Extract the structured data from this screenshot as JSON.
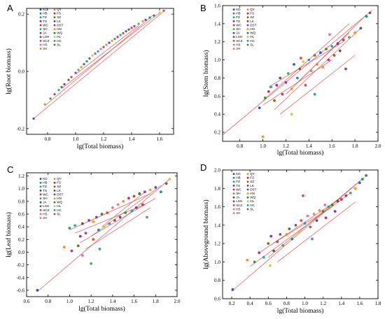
{
  "figure": {
    "legend_entries": [
      "KD",
      "QY",
      "HB",
      "FS",
      "FZ",
      "SZ",
      "TS",
      "LK",
      "WC",
      "DST",
      "SH",
      "HN",
      "JA",
      "WQ",
      "LSH",
      "HL",
      "SCZ",
      "HC",
      "HS",
      "SL",
      "JH"
    ],
    "legend_colors": [
      "#1f3fbf",
      "#e8871e",
      "#2b8a3e",
      "#c2185b",
      "#00a6a6",
      "#7a5c00",
      "#7b1fa2",
      "#5d4037",
      "#d81b60",
      "#8e24aa",
      "#43a047",
      "#fb8c00",
      "#3949ab",
      "#00897b",
      "#6d4c41",
      "#c0ca33",
      "#e53935",
      "#1e88e5",
      "#f06292",
      "#616161",
      "#ff7043"
    ]
  },
  "chart_data": [
    {
      "panel": "A",
      "type": "scatter",
      "xlabel": "lg(Total biomass)",
      "ylabel": "lg(Root biomass)",
      "xlim": [
        0.65,
        1.7
      ],
      "ylim": [
        -0.22,
        0.22
      ],
      "xticks": [
        0.8,
        1.0,
        1.2,
        1.4,
        1.6
      ],
      "yticks": [
        -0.2,
        0.0,
        0.2
      ],
      "xtick_labels": [
        "0.8",
        "1.0",
        "1.2",
        "1.4",
        "1.6"
      ],
      "ytick_labels": [
        "-0.2",
        "0.0",
        "0.2"
      ],
      "fit_lines": [
        {
          "x": [
            0.7,
            1.63
          ],
          "y": [
            -0.165,
            0.21
          ]
        },
        {
          "x": [
            0.78,
            1.55
          ],
          "y": [
            -0.12,
            0.195
          ]
        },
        {
          "x": [
            0.9,
            1.6
          ],
          "y": [
            -0.06,
            0.205
          ]
        },
        {
          "x": [
            1.0,
            1.45
          ],
          "y": [
            -0.01,
            0.16
          ]
        }
      ],
      "points": {
        "x": [
          0.7,
          0.78,
          0.82,
          0.85,
          0.88,
          0.9,
          0.92,
          0.95,
          0.97,
          1.0,
          1.02,
          1.04,
          1.06,
          1.08,
          1.1,
          1.12,
          1.14,
          1.16,
          1.18,
          1.2,
          1.22,
          1.24,
          1.26,
          1.28,
          1.3,
          1.32,
          1.34,
          1.36,
          1.38,
          1.4,
          1.42,
          1.45,
          1.48,
          1.5,
          1.53,
          1.56,
          1.6,
          1.63
        ],
        "y": [
          -0.165,
          -0.115,
          -0.095,
          -0.08,
          -0.065,
          -0.055,
          -0.045,
          -0.03,
          -0.02,
          -0.005,
          0.005,
          0.015,
          0.025,
          0.035,
          0.045,
          0.055,
          0.062,
          0.07,
          0.078,
          0.085,
          0.093,
          0.1,
          0.107,
          0.113,
          0.12,
          0.127,
          0.133,
          0.14,
          0.146,
          0.152,
          0.158,
          0.166,
          0.175,
          0.18,
          0.188,
          0.195,
          0.205,
          0.212
        ]
      }
    },
    {
      "panel": "B",
      "type": "scatter",
      "xlabel": "lg(Total biomass)",
      "ylabel": "lg(Stem biomass)",
      "xlim": [
        0.65,
        2.0
      ],
      "ylim": [
        0.1,
        1.6
      ],
      "xticks": [
        0.8,
        1.0,
        1.2,
        1.4,
        1.6,
        1.8,
        2.0
      ],
      "yticks": [
        0.2,
        0.4,
        0.6,
        0.8,
        1.0,
        1.2,
        1.4,
        1.6
      ],
      "xtick_labels": [
        "0.8",
        "1.0",
        "1.2",
        "1.4",
        "1.6",
        "1.8",
        "2.0"
      ],
      "ytick_labels": [
        "0.2",
        "0.4",
        "0.6",
        "0.8",
        "1.0",
        "1.2",
        "1.4",
        "1.6"
      ],
      "fit_lines": [
        {
          "x": [
            0.65,
            1.95
          ],
          "y": [
            0.17,
            1.55
          ]
        },
        {
          "x": [
            1.0,
            1.75
          ],
          "y": [
            0.55,
            1.4
          ]
        },
        {
          "x": [
            1.1,
            1.85
          ],
          "y": [
            0.45,
            1.35
          ]
        },
        {
          "x": [
            1.2,
            1.9
          ],
          "y": [
            0.62,
            1.5
          ]
        },
        {
          "x": [
            1.05,
            1.7
          ],
          "y": [
            0.7,
            1.2
          ]
        },
        {
          "x": [
            1.15,
            1.8
          ],
          "y": [
            0.4,
            1.05
          ]
        },
        {
          "x": [
            1.3,
            1.75
          ],
          "y": [
            0.75,
            1.3
          ]
        },
        {
          "x": [
            1.0,
            1.6
          ],
          "y": [
            0.5,
            1.0
          ]
        }
      ],
      "points": {
        "x": [
          0.97,
          1.0,
          1.02,
          1.05,
          1.07,
          1.1,
          1.12,
          1.15,
          1.17,
          1.2,
          1.22,
          1.25,
          1.27,
          1.3,
          1.32,
          1.35,
          1.37,
          1.4,
          1.42,
          1.45,
          1.47,
          1.5,
          1.52,
          1.55,
          1.57,
          1.6,
          1.62,
          1.65,
          1.67,
          1.7,
          1.72,
          1.75,
          1.8,
          1.85,
          1.9,
          1.93,
          1.25,
          1.33,
          1.45,
          1.58
        ],
        "y": [
          0.47,
          0.15,
          0.58,
          0.65,
          0.7,
          0.55,
          0.72,
          0.8,
          0.62,
          0.75,
          0.85,
          0.68,
          0.95,
          0.8,
          0.9,
          0.98,
          0.72,
          1.0,
          0.88,
          1.05,
          0.95,
          1.08,
          0.92,
          1.12,
          1.0,
          1.15,
          1.05,
          1.18,
          1.1,
          1.22,
          0.9,
          1.25,
          1.3,
          1.35,
          1.48,
          1.52,
          0.4,
          1.02,
          0.62,
          1.28
        ]
      }
    },
    {
      "panel": "C",
      "type": "scatter",
      "xlabel": "lg(Total biomass)",
      "ylabel": "lg(Leaf biomass)",
      "xlim": [
        0.6,
        2.0
      ],
      "ylim": [
        -0.7,
        1.25
      ],
      "xticks": [
        0.6,
        0.8,
        1.0,
        1.2,
        1.4,
        1.6,
        1.8,
        2.0
      ],
      "yticks": [
        -0.6,
        -0.4,
        -0.2,
        0.0,
        0.2,
        0.4,
        0.6,
        0.8,
        1.0,
        1.2
      ],
      "xtick_labels": [
        "0.6",
        "0.8",
        "1.0",
        "1.2",
        "1.4",
        "1.6",
        "1.8",
        "2.0"
      ],
      "ytick_labels": [
        "-0.6",
        "-0.4",
        "-0.2",
        "0.0",
        "0.2",
        "0.4",
        "0.6",
        "0.8",
        "1.0",
        "1.2"
      ],
      "fit_lines": [
        {
          "x": [
            0.7,
            1.93
          ],
          "y": [
            -0.62,
            1.15
          ]
        },
        {
          "x": [
            1.0,
            1.75
          ],
          "y": [
            0.35,
            0.92
          ]
        },
        {
          "x": [
            1.1,
            1.8
          ],
          "y": [
            0.15,
            0.85
          ]
        },
        {
          "x": [
            1.2,
            1.85
          ],
          "y": [
            0.25,
            1.05
          ]
        },
        {
          "x": [
            1.05,
            1.7
          ],
          "y": [
            0.3,
            0.75
          ]
        },
        {
          "x": [
            1.15,
            1.75
          ],
          "y": [
            0.05,
            0.7
          ]
        },
        {
          "x": [
            1.3,
            1.7
          ],
          "y": [
            0.4,
            0.95
          ]
        }
      ],
      "points": {
        "x": [
          0.7,
          0.95,
          1.0,
          1.02,
          1.05,
          1.08,
          1.1,
          1.12,
          1.15,
          1.18,
          1.2,
          1.22,
          1.25,
          1.27,
          1.3,
          1.32,
          1.35,
          1.37,
          1.4,
          1.42,
          1.45,
          1.47,
          1.5,
          1.52,
          1.55,
          1.58,
          1.6,
          1.62,
          1.65,
          1.68,
          1.7,
          1.72,
          1.75,
          1.8,
          1.85,
          1.9,
          1.93,
          1.22,
          1.28,
          1.12
        ],
        "y": [
          -0.6,
          0.08,
          0.38,
          0.02,
          0.42,
          0.1,
          0.25,
          0.45,
          0.3,
          0.5,
          -0.18,
          0.48,
          0.55,
          0.35,
          0.6,
          0.4,
          0.62,
          0.45,
          0.7,
          0.5,
          0.75,
          0.55,
          0.8,
          0.62,
          0.85,
          0.65,
          0.88,
          0.7,
          0.92,
          0.75,
          0.95,
          0.55,
          0.98,
          1.02,
          0.95,
          1.08,
          1.15,
          0.2,
          0.05,
          -0.05
        ]
      }
    },
    {
      "panel": "D",
      "type": "scatter",
      "xlabel": "lg(Total biomass)",
      "ylabel": "lg(Aboveground biomass)",
      "xlim": [
        0.1,
        1.8
      ],
      "ylim": [
        0.6,
        2.0
      ],
      "xticks": [
        0.2,
        0.4,
        0.6,
        0.8,
        1.0,
        1.2,
        1.4,
        1.6,
        1.8
      ],
      "yticks": [
        0.6,
        0.8,
        1.0,
        1.2,
        1.4,
        1.6,
        1.8,
        2.0
      ],
      "xtick_labels": [
        "0.2",
        "0.4",
        "0.6",
        "0.8",
        "1.0",
        "1.2",
        "1.4",
        "1.6",
        "1.8"
      ],
      "ytick_labels": [
        "0.6",
        "0.8",
        "1.0",
        "1.2",
        "1.4",
        "1.6",
        "1.8",
        "2.0"
      ],
      "fit_lines": [
        {
          "x": [
            0.2,
            1.65
          ],
          "y": [
            0.68,
            1.92
          ]
        },
        {
          "x": [
            0.4,
            1.5
          ],
          "y": [
            0.95,
            1.75
          ]
        },
        {
          "x": [
            0.6,
            1.6
          ],
          "y": [
            1.05,
            1.88
          ]
        },
        {
          "x": [
            0.5,
            1.4
          ],
          "y": [
            1.1,
            1.7
          ]
        },
        {
          "x": [
            0.7,
            1.55
          ],
          "y": [
            1.0,
            1.65
          ]
        },
        {
          "x": [
            0.65,
            1.3
          ],
          "y": [
            1.2,
            1.6
          ]
        }
      ],
      "points": {
        "x": [
          0.21,
          0.37,
          0.45,
          0.5,
          0.55,
          0.6,
          0.63,
          0.66,
          0.7,
          0.73,
          0.76,
          0.8,
          0.83,
          0.86,
          0.9,
          0.93,
          0.96,
          1.0,
          1.03,
          1.06,
          1.1,
          1.13,
          1.16,
          1.2,
          1.23,
          1.26,
          1.3,
          1.33,
          1.36,
          1.4,
          1.45,
          1.5,
          1.55,
          1.6,
          1.63,
          1.67,
          0.62,
          0.98,
          1.08,
          1.22
        ],
        "y": [
          0.7,
          1.02,
          1.0,
          1.1,
          1.05,
          1.2,
          1.28,
          1.12,
          1.22,
          1.3,
          1.18,
          1.3,
          1.36,
          1.25,
          1.4,
          1.32,
          1.45,
          1.42,
          1.5,
          1.38,
          1.52,
          1.45,
          1.56,
          1.55,
          1.48,
          1.6,
          1.62,
          1.55,
          1.66,
          1.68,
          1.72,
          1.75,
          1.8,
          1.86,
          1.9,
          1.94,
          0.96,
          1.72,
          1.25,
          1.62
        ]
      }
    }
  ]
}
